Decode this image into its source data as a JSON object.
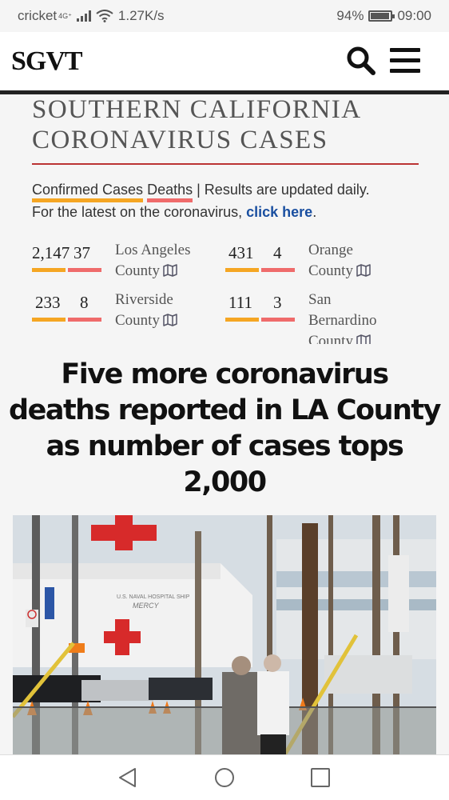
{
  "status_bar": {
    "carrier": "cricket",
    "network": "4G⁺",
    "speed": "1.27K/s",
    "battery": "94%",
    "time": "09:00"
  },
  "header": {
    "logo": "SGVT"
  },
  "widget": {
    "title_line1": "SOUTHERN CALIFORNIA",
    "title_line2": "CORONAVIRUS CASES",
    "legend_confirmed": "Confirmed Cases",
    "legend_deaths": "Deaths",
    "legend_suffix": " | Results are updated daily.",
    "latest_prefix": "For the latest on the coronavirus, ",
    "latest_link": "click here",
    "latest_suffix": ".",
    "counties": [
      {
        "confirmed": "2,147",
        "deaths": "37",
        "name_line1": "Los Angeles",
        "name_line2": "County"
      },
      {
        "confirmed": "431",
        "deaths": "4",
        "name_line1": "Orange",
        "name_line2": "County"
      },
      {
        "confirmed": "233",
        "deaths": "8",
        "name_line1": "Riverside",
        "name_line2": "County"
      },
      {
        "confirmed": "111",
        "deaths": "3",
        "name_line1": "San",
        "name_line2": "Bernardino",
        "name_line3": "County"
      }
    ],
    "colors": {
      "confirmed": "#f5a623",
      "deaths": "#ef6b6b",
      "rule": "#b33333",
      "link": "#1a4fa0"
    }
  },
  "article": {
    "headline": "Five more coronavirus deaths reported in LA County as number of cases tops 2,000",
    "photo_ship_text_1": "U.S. NAVAL HOSPITAL SHIP",
    "photo_ship_text_2": "MERCY"
  },
  "nav_bar": {
    "back_icon": "back-triangle-icon",
    "home_icon": "home-circle-icon",
    "recents_icon": "recents-square-icon"
  }
}
